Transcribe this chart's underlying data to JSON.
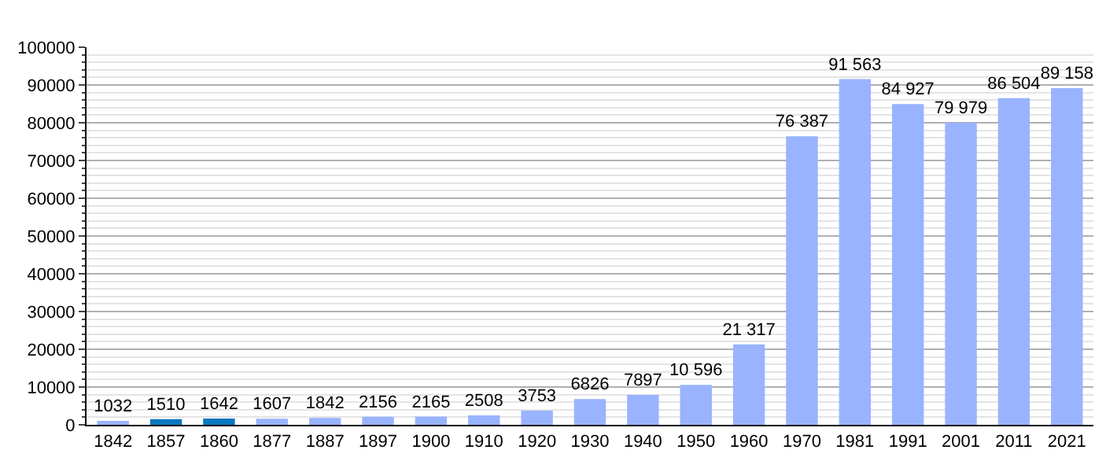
{
  "chart_data": {
    "type": "bar",
    "categories": [
      "1842",
      "1857",
      "1860",
      "1877",
      "1887",
      "1897",
      "1900",
      "1910",
      "1920",
      "1930",
      "1940",
      "1950",
      "1960",
      "1970",
      "1981",
      "1991",
      "2001",
      "2011",
      "2021"
    ],
    "values": [
      1032,
      1510,
      1642,
      1607,
      1842,
      2156,
      2165,
      2508,
      3753,
      6826,
      7897,
      10596,
      21317,
      76387,
      91563,
      84927,
      79979,
      86504,
      89158
    ],
    "colors": [
      "#99b3ff",
      "#0a78c0",
      "#0a78c0",
      "#99b3ff",
      "#99b3ff",
      "#99b3ff",
      "#99b3ff",
      "#99b3ff",
      "#99b3ff",
      "#99b3ff",
      "#99b3ff",
      "#99b3ff",
      "#99b3ff",
      "#99b3ff",
      "#99b3ff",
      "#99b3ff",
      "#99b3ff",
      "#99b3ff",
      "#99b3ff"
    ],
    "value_labels": [
      "1032",
      "1510",
      "1642",
      "1607",
      "1842",
      "2156",
      "2165",
      "2508",
      "3753",
      "6826",
      "7897",
      "10 596",
      "21 317",
      "76 387",
      "91 563",
      "84 927",
      "79 979",
      "86 504",
      "89 158"
    ],
    "ylim": [
      0,
      100000
    ],
    "yticks": [
      0,
      10000,
      20000,
      30000,
      40000,
      50000,
      60000,
      70000,
      80000,
      90000,
      100000
    ],
    "grid": "y"
  }
}
